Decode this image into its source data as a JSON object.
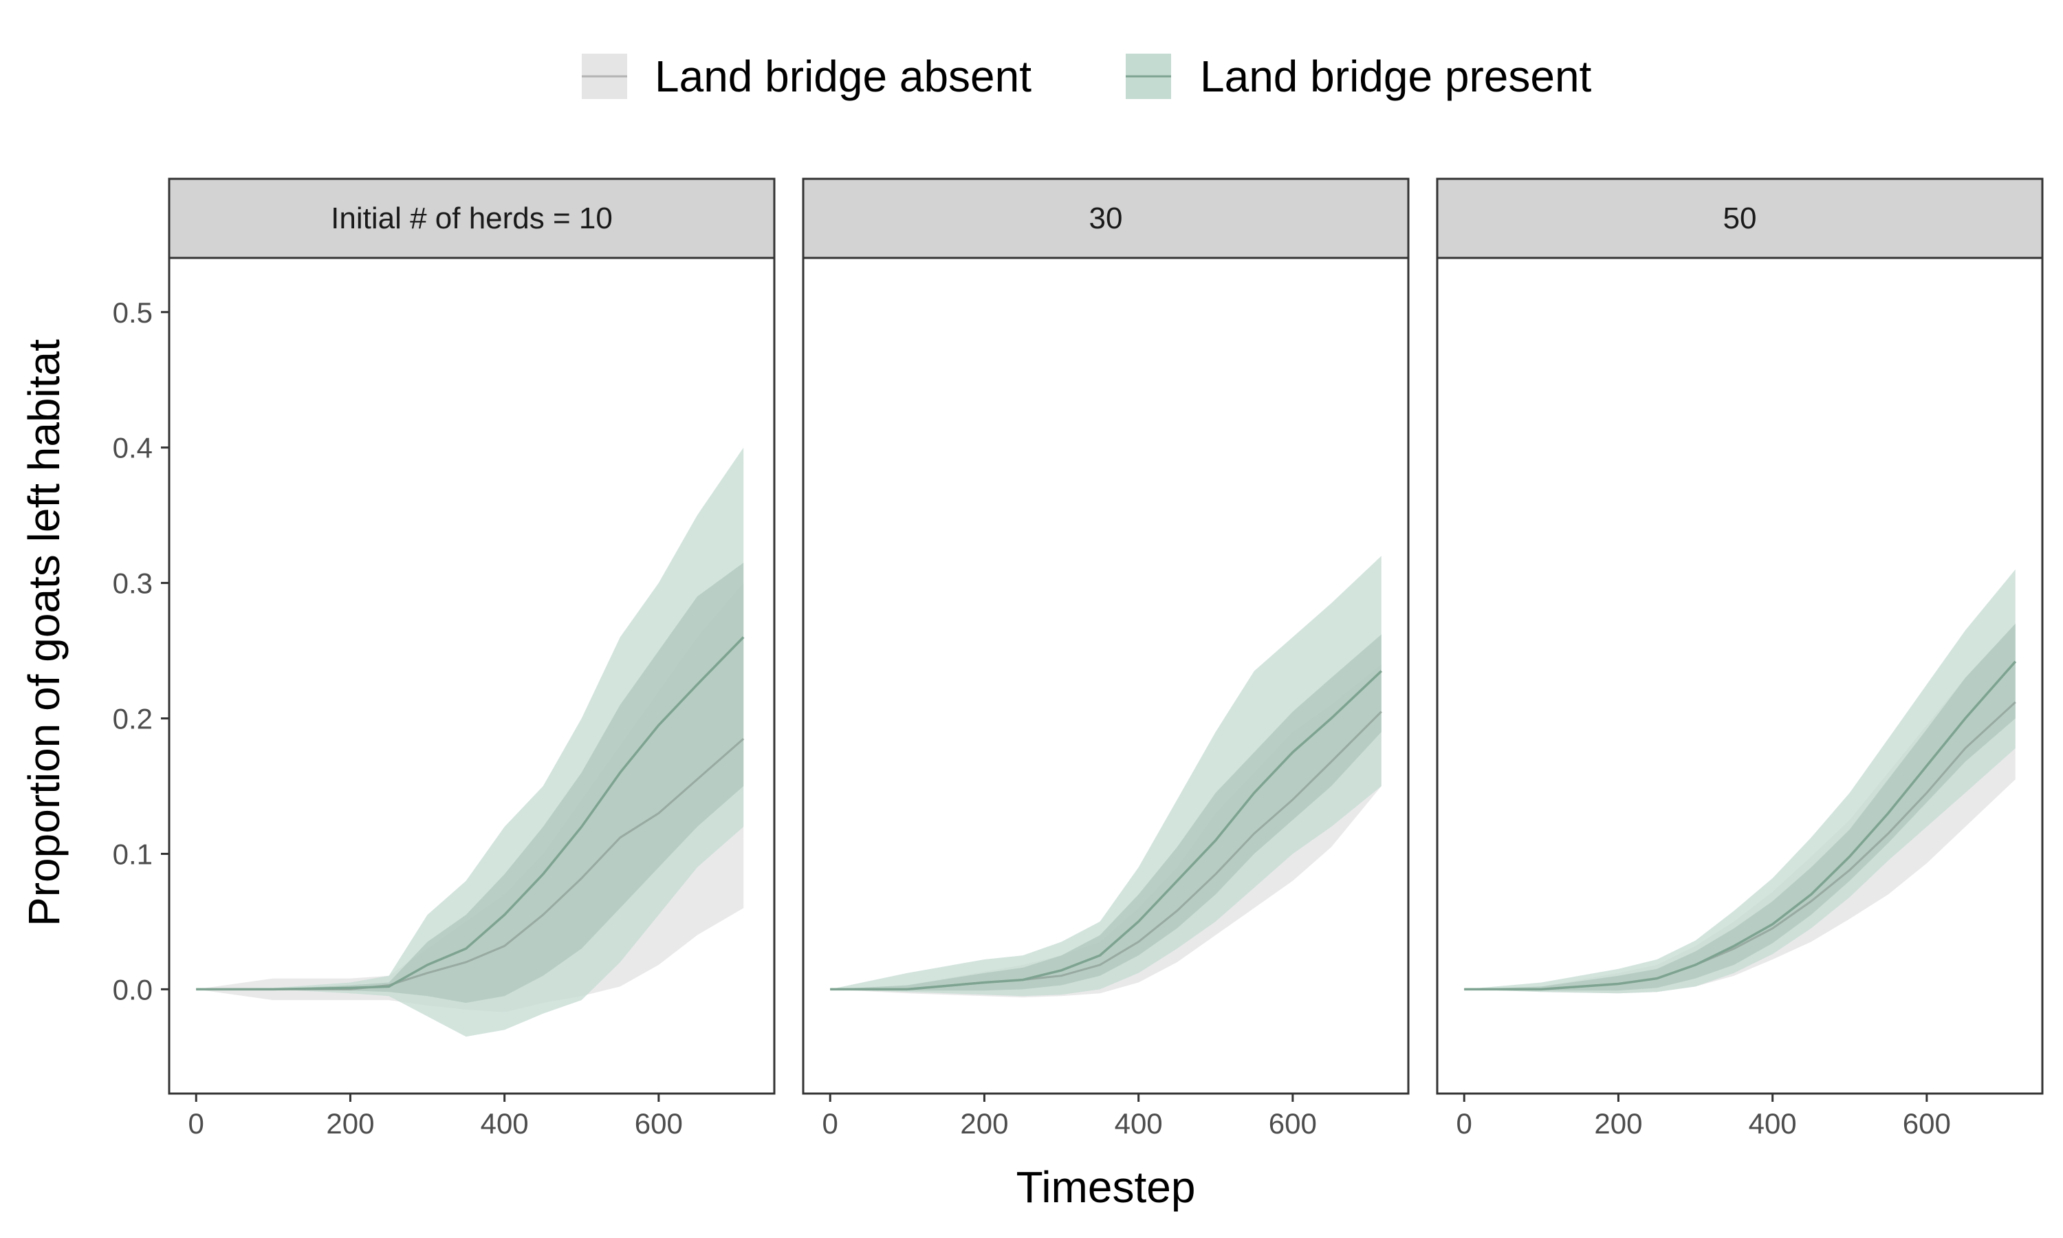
{
  "chart_data": {
    "type": "area",
    "xlabel": "Timestep",
    "ylabel": "Proportion of goats left habitat",
    "xlim": [
      -35,
      750
    ],
    "ylim": [
      -0.077,
      0.54
    ],
    "x_ticks": [
      0,
      200,
      400,
      600
    ],
    "y_ticks": [
      0.0,
      0.1,
      0.2,
      0.3,
      0.4,
      0.5
    ],
    "y_tick_labels": [
      "0.0",
      "0.1",
      "0.2",
      "0.3",
      "0.4",
      "0.5"
    ],
    "grid": false,
    "legend_position": "top",
    "facets": [
      "Initial # of herds = 10",
      "30",
      "50"
    ],
    "series": [
      {
        "name": "Land bridge absent",
        "line_color": "#b3b3b3",
        "fill_color": "#e5e5e5"
      },
      {
        "name": "Land bridge present",
        "line_color": "#7ea391",
        "fill_color": "#c4dbd1"
      }
    ],
    "panels": [
      {
        "facet": "Initial # of herds = 10",
        "x": [
          0,
          100,
          200,
          250,
          300,
          350,
          400,
          450,
          500,
          550,
          600,
          650,
          710
        ],
        "absent_mean": [
          0,
          0,
          0,
          0.003,
          0.012,
          0.02,
          0.032,
          0.055,
          0.082,
          0.112,
          0.13,
          0.155,
          0.185
        ],
        "absent_low": [
          0,
          -0.008,
          -0.008,
          -0.008,
          -0.012,
          -0.015,
          -0.017,
          -0.01,
          -0.005,
          0.002,
          0.018,
          0.04,
          0.06
        ],
        "absent_high": [
          0,
          0.008,
          0.008,
          0.01,
          0.03,
          0.05,
          0.07,
          0.1,
          0.14,
          0.18,
          0.22,
          0.26,
          0.3
        ],
        "present_mean": [
          0,
          0,
          0.001,
          0.002,
          0.018,
          0.03,
          0.055,
          0.085,
          0.12,
          0.16,
          0.195,
          0.225,
          0.26
        ],
        "present_low": [
          0,
          0,
          -0.003,
          -0.005,
          -0.02,
          -0.035,
          -0.03,
          -0.018,
          -0.008,
          0.02,
          0.055,
          0.09,
          0.12
        ],
        "present_high": [
          0,
          0.001,
          0.005,
          0.01,
          0.055,
          0.08,
          0.12,
          0.15,
          0.2,
          0.26,
          0.3,
          0.35,
          0.4
        ],
        "present_inner_low": [
          0,
          0,
          -0.001,
          -0.002,
          -0.005,
          -0.01,
          -0.005,
          0.01,
          0.03,
          0.06,
          0.09,
          0.12,
          0.15
        ],
        "present_inner_high": [
          0,
          0,
          0.003,
          0.005,
          0.035,
          0.055,
          0.085,
          0.12,
          0.16,
          0.21,
          0.25,
          0.29,
          0.315
        ]
      },
      {
        "facet": "30",
        "x": [
          0,
          100,
          200,
          250,
          300,
          350,
          400,
          450,
          500,
          550,
          600,
          650,
          715
        ],
        "absent_mean": [
          0,
          0,
          0.005,
          0.007,
          0.01,
          0.018,
          0.035,
          0.058,
          0.085,
          0.115,
          0.14,
          0.168,
          0.205
        ],
        "absent_low": [
          0,
          -0.003,
          -0.005,
          -0.006,
          -0.005,
          -0.003,
          0.005,
          0.02,
          0.04,
          0.06,
          0.08,
          0.105,
          0.15
        ],
        "absent_high": [
          0,
          0.003,
          0.013,
          0.018,
          0.025,
          0.035,
          0.06,
          0.09,
          0.13,
          0.16,
          0.19,
          0.21,
          0.24
        ],
        "present_mean": [
          0,
          0,
          0.005,
          0.007,
          0.014,
          0.025,
          0.05,
          0.08,
          0.11,
          0.145,
          0.175,
          0.2,
          0.235
        ],
        "present_low": [
          0,
          -0.002,
          -0.004,
          -0.005,
          -0.004,
          0,
          0.012,
          0.03,
          0.05,
          0.075,
          0.1,
          0.12,
          0.15
        ],
        "present_high": [
          0,
          0.012,
          0.022,
          0.025,
          0.035,
          0.05,
          0.09,
          0.14,
          0.19,
          0.235,
          0.26,
          0.285,
          0.32
        ],
        "present_inner_low": [
          0,
          -0.001,
          -0.001,
          0,
          0.003,
          0.01,
          0.025,
          0.045,
          0.07,
          0.1,
          0.125,
          0.15,
          0.19
        ],
        "present_inner_high": [
          0,
          0.003,
          0.012,
          0.016,
          0.025,
          0.04,
          0.07,
          0.105,
          0.145,
          0.175,
          0.205,
          0.23,
          0.262
        ]
      },
      {
        "facet": "50",
        "x": [
          0,
          100,
          200,
          250,
          300,
          350,
          400,
          450,
          500,
          550,
          600,
          650,
          715
        ],
        "absent_mean": [
          0,
          0,
          0.004,
          0.008,
          0.018,
          0.03,
          0.045,
          0.065,
          0.088,
          0.115,
          0.145,
          0.178,
          0.212
        ],
        "absent_low": [
          0,
          -0.002,
          -0.003,
          -0.002,
          0.002,
          0.01,
          0.022,
          0.035,
          0.052,
          0.07,
          0.093,
          0.12,
          0.155
        ],
        "absent_high": [
          0,
          0.002,
          0.012,
          0.018,
          0.032,
          0.05,
          0.072,
          0.098,
          0.125,
          0.16,
          0.195,
          0.23,
          0.27
        ],
        "present_mean": [
          0,
          0,
          0.004,
          0.008,
          0.018,
          0.032,
          0.048,
          0.07,
          0.098,
          0.13,
          0.165,
          0.2,
          0.242
        ],
        "present_low": [
          0,
          -0.002,
          -0.003,
          -0.002,
          0.002,
          0.012,
          0.026,
          0.045,
          0.068,
          0.095,
          0.12,
          0.145,
          0.178
        ],
        "present_high": [
          0,
          0.005,
          0.015,
          0.022,
          0.036,
          0.058,
          0.082,
          0.112,
          0.145,
          0.185,
          0.225,
          0.265,
          0.31
        ],
        "present_inner_low": [
          0,
          -0.001,
          -0.001,
          0.001,
          0.008,
          0.018,
          0.034,
          0.055,
          0.08,
          0.108,
          0.138,
          0.168,
          0.2
        ],
        "present_inner_high": [
          0,
          0.002,
          0.01,
          0.015,
          0.028,
          0.045,
          0.065,
          0.09,
          0.118,
          0.155,
          0.192,
          0.23,
          0.27
        ]
      }
    ]
  }
}
